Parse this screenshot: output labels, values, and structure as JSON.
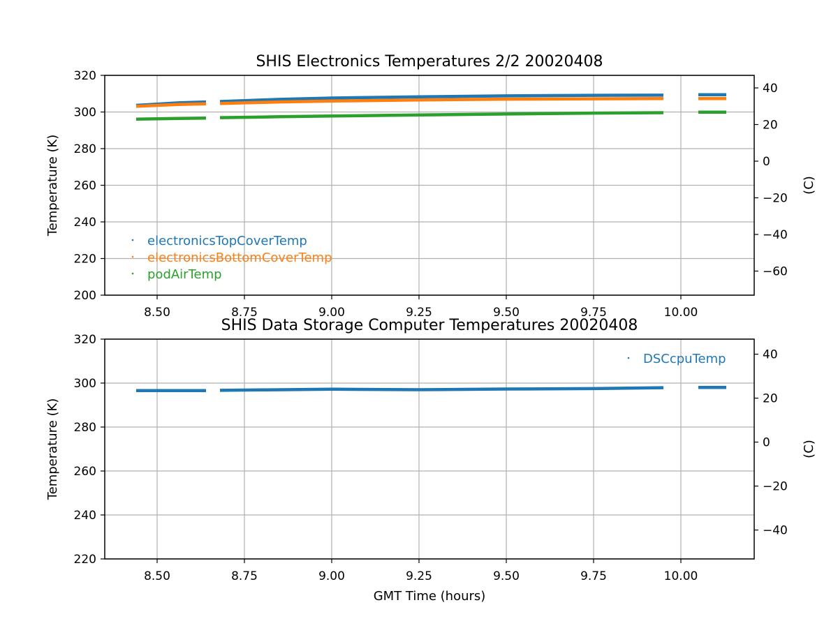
{
  "chart_data": [
    {
      "type": "scatter",
      "title": "SHIS Electronics Temperatures 2/2 20020408",
      "xlabel": "",
      "ylabel": "Temperature (K)",
      "y2label": "(C)",
      "xlim": [
        8.35,
        10.21
      ],
      "ylim": [
        200,
        320
      ],
      "y2lim": [
        -73.15,
        46.85
      ],
      "xticks": [
        "8.50",
        "8.75",
        "9.00",
        "9.25",
        "9.50",
        "9.75",
        "10.00"
      ],
      "xtick_values": [
        8.5,
        8.75,
        9.0,
        9.25,
        9.5,
        9.75,
        10.0
      ],
      "yticks": [
        "200",
        "220",
        "240",
        "260",
        "280",
        "300",
        "320"
      ],
      "ytick_values": [
        200,
        220,
        240,
        260,
        280,
        300,
        320
      ],
      "y2ticks": [
        "40",
        "20",
        "0",
        "−20",
        "−40",
        "−60"
      ],
      "y2tick_values": [
        40,
        20,
        0,
        -20,
        -40,
        -60
      ],
      "grid": true,
      "legend_position": "lower-left",
      "series": [
        {
          "name": "electronicsTopCoverTemp",
          "color": "#1f77b4",
          "segments": [
            {
              "x": [
                8.44,
                8.5,
                8.56,
                8.64
              ],
              "y": [
                303.6,
                304.3,
                305.0,
                305.5
              ]
            },
            {
              "x": [
                8.68,
                8.75,
                8.85,
                9.0,
                9.25,
                9.5,
                9.75,
                9.95
              ],
              "y": [
                305.7,
                306.2,
                306.9,
                307.6,
                308.3,
                308.8,
                309.1,
                309.2
              ]
            },
            {
              "x": [
                10.05,
                10.13
              ],
              "y": [
                309.4,
                309.4
              ]
            }
          ]
        },
        {
          "name": "electronicsBottomCoverTemp",
          "color": "#ff7f0e",
          "segments": [
            {
              "x": [
                8.44,
                8.5,
                8.56,
                8.64
              ],
              "y": [
                303.1,
                303.6,
                304.1,
                304.5
              ]
            },
            {
              "x": [
                8.68,
                8.75,
                8.85,
                9.0,
                9.25,
                9.5,
                9.75,
                9.95
              ],
              "y": [
                304.6,
                305.0,
                305.5,
                306.0,
                306.6,
                307.0,
                307.2,
                307.3
              ]
            },
            {
              "x": [
                10.05,
                10.13
              ],
              "y": [
                307.3,
                307.3
              ]
            }
          ]
        },
        {
          "name": "podAirTemp",
          "color": "#2ca02c",
          "segments": [
            {
              "x": [
                8.44,
                8.5,
                8.56,
                8.64
              ],
              "y": [
                296.1,
                296.3,
                296.5,
                296.7
              ]
            },
            {
              "x": [
                8.68,
                8.75,
                8.85,
                9.0,
                9.25,
                9.5,
                9.75,
                9.95
              ],
              "y": [
                296.9,
                297.1,
                297.4,
                297.8,
                298.4,
                298.9,
                299.4,
                299.6
              ]
            },
            {
              "x": [
                10.05,
                10.13
              ],
              "y": [
                299.9,
                299.9
              ]
            }
          ]
        }
      ]
    },
    {
      "type": "scatter",
      "title": "SHIS Data Storage Computer Temperatures 20020408",
      "xlabel": "GMT Time (hours)",
      "ylabel": "Temperature (K)",
      "y2label": "(C)",
      "xlim": [
        8.35,
        10.21
      ],
      "ylim": [
        220,
        320
      ],
      "y2lim": [
        -53.15,
        46.85
      ],
      "xticks": [
        "8.50",
        "8.75",
        "9.00",
        "9.25",
        "9.50",
        "9.75",
        "10.00"
      ],
      "xtick_values": [
        8.5,
        8.75,
        9.0,
        9.25,
        9.5,
        9.75,
        10.0
      ],
      "yticks": [
        "220",
        "240",
        "260",
        "280",
        "300",
        "320"
      ],
      "ytick_values": [
        220,
        240,
        260,
        280,
        300,
        320
      ],
      "y2ticks": [
        "40",
        "20",
        "0",
        "−20",
        "−40"
      ],
      "y2tick_values": [
        40,
        20,
        0,
        -20,
        -40
      ],
      "grid": true,
      "legend_position": "upper-right",
      "series": [
        {
          "name": "DSCcpuTemp",
          "color": "#1f77b4",
          "segments": [
            {
              "x": [
                8.44,
                8.55,
                8.64
              ],
              "y": [
                296.6,
                296.6,
                296.6
              ]
            },
            {
              "x": [
                8.68,
                8.8,
                9.0,
                9.25,
                9.5,
                9.75,
                9.95
              ],
              "y": [
                296.7,
                296.9,
                297.2,
                297.0,
                297.3,
                297.5,
                297.9
              ]
            },
            {
              "x": [
                10.05,
                10.13
              ],
              "y": [
                298.0,
                298.0
              ]
            }
          ]
        }
      ]
    }
  ]
}
